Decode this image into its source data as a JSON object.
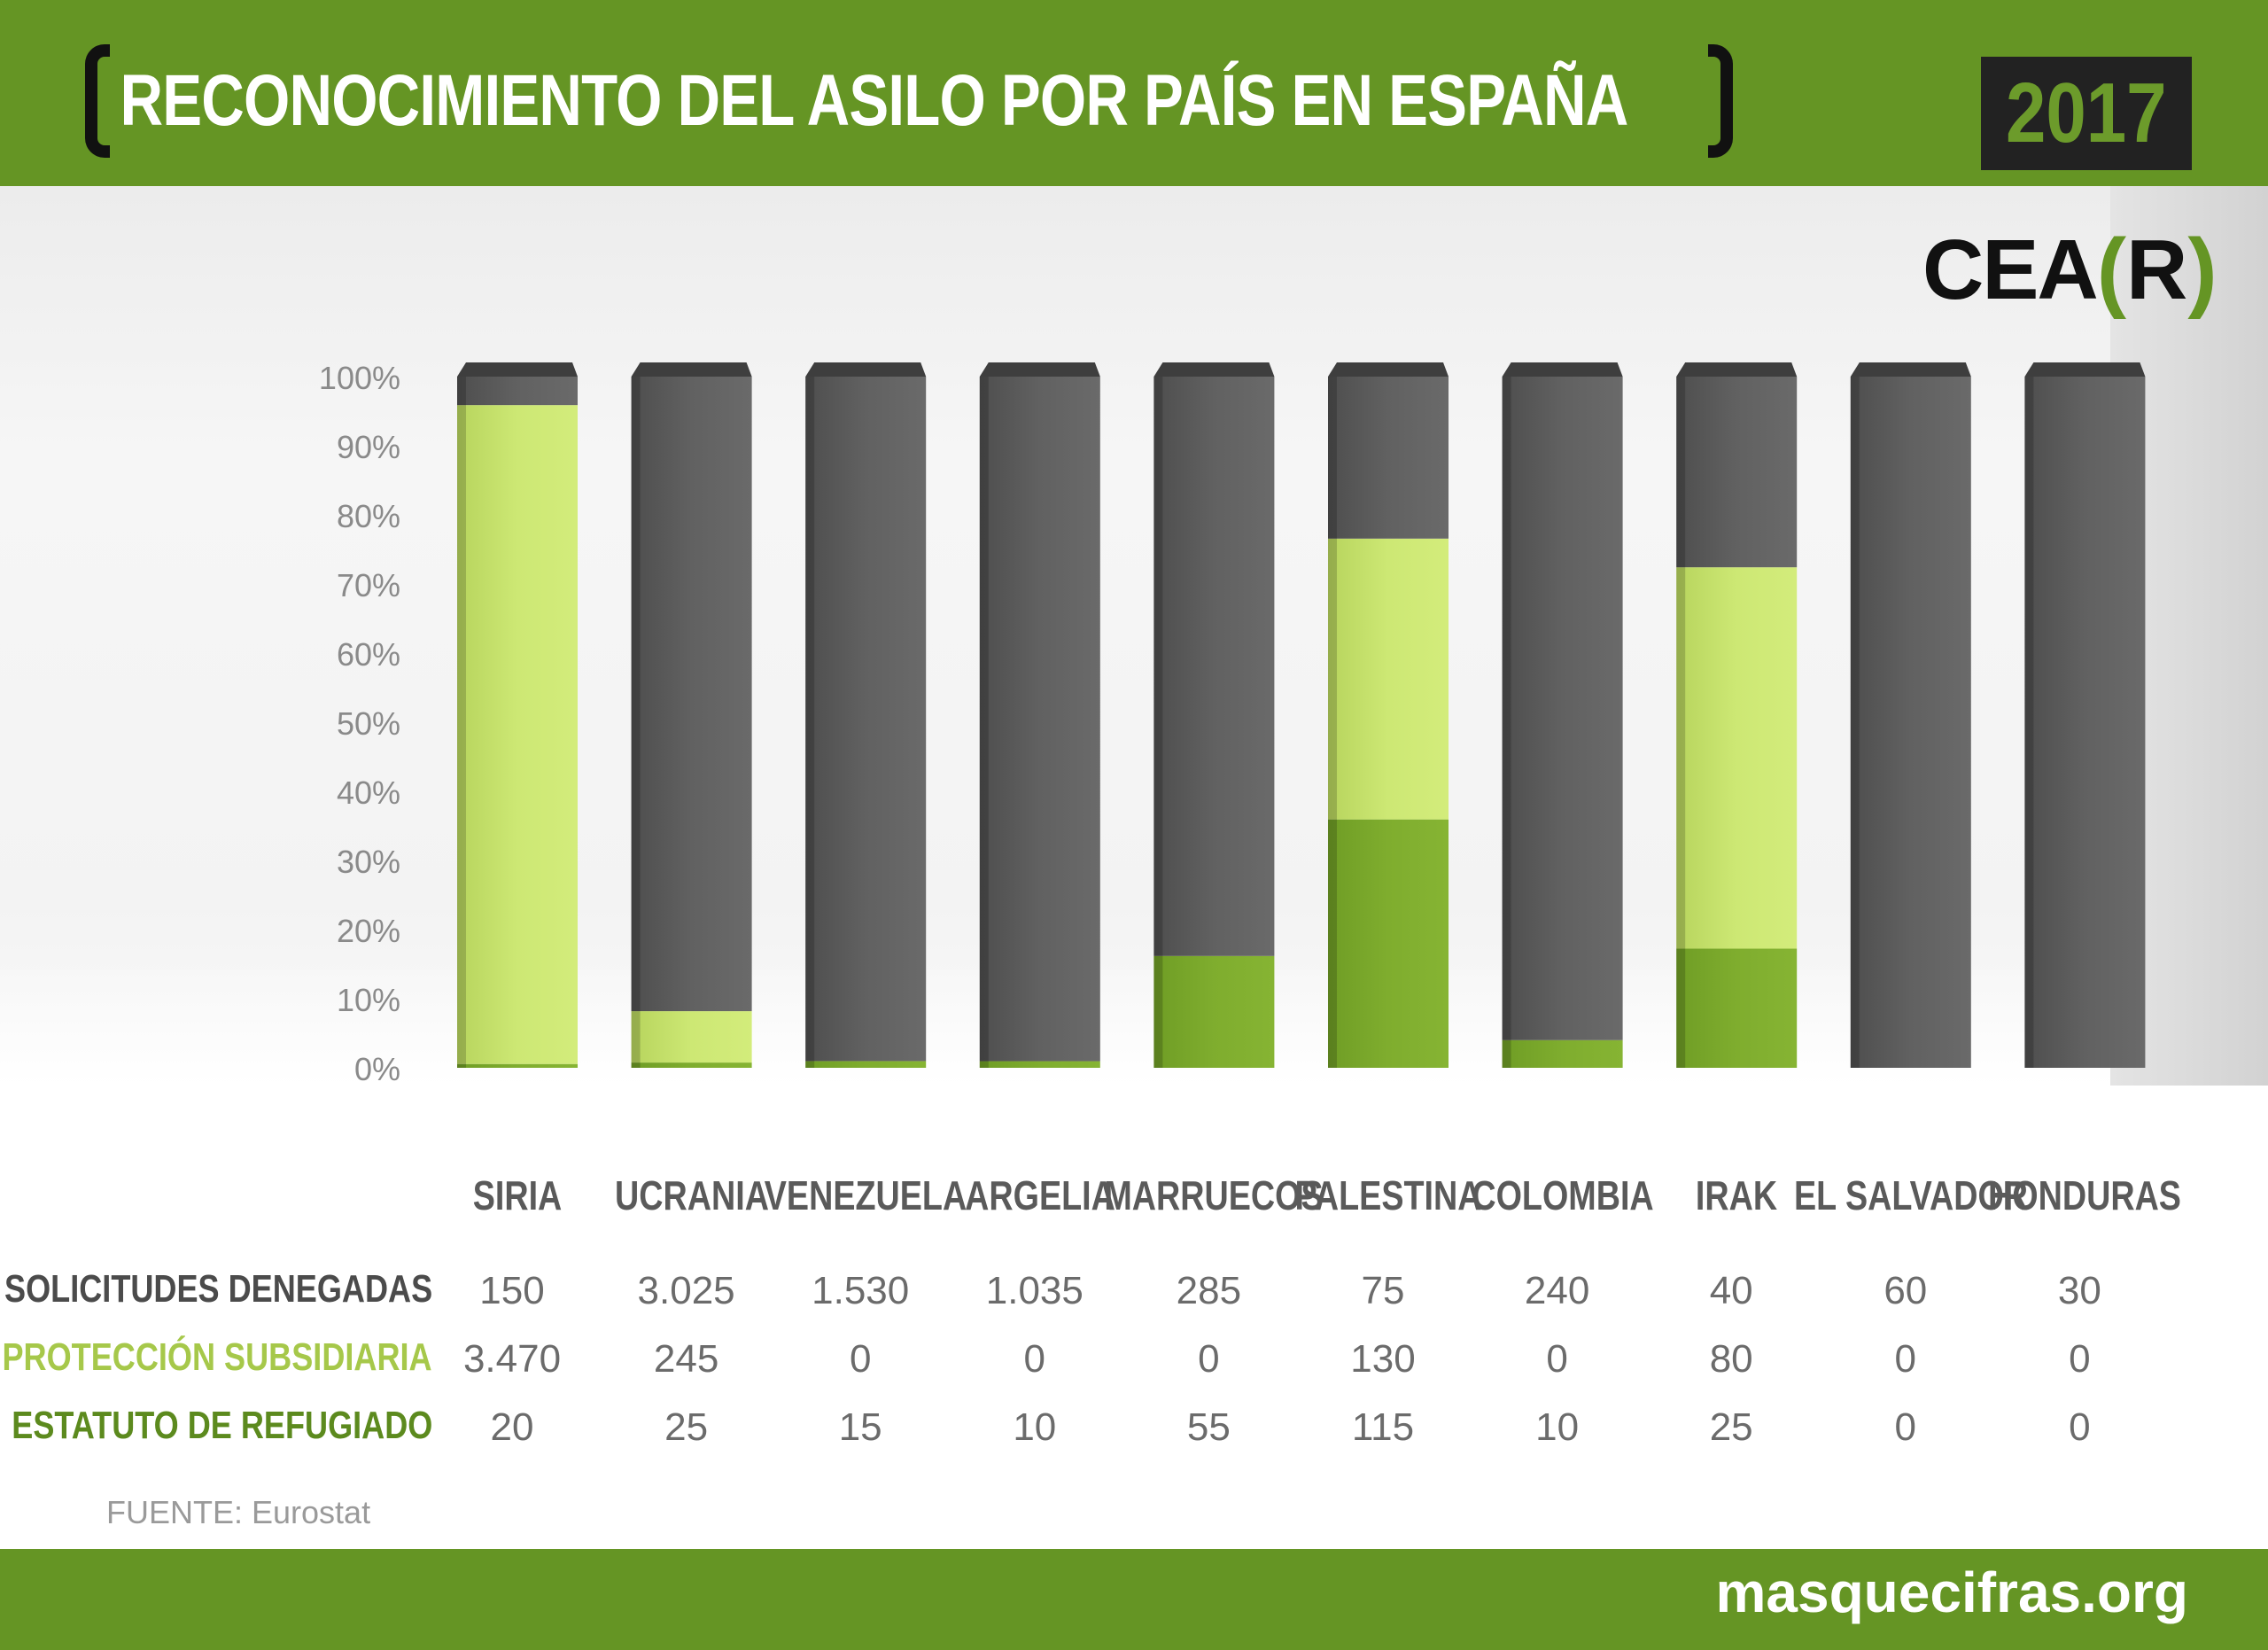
{
  "header": {
    "title": "RECONOCIMIENTO DEL ASILO POR PAÍS EN ESPAÑA",
    "year": "2017"
  },
  "logo": {
    "left": "CEA",
    "bracket_open": "(",
    "letter": "R",
    "bracket_close": ")"
  },
  "colors": {
    "header_green": "#659524",
    "denegadas": "#5a5a5a",
    "subsidiaria": "#c6e06f",
    "refugiado": "#7aa82c",
    "label_subsidiaria": "#a6c84a",
    "label_refugiado": "#5c8a1e"
  },
  "row_labels": {
    "denegadas": "SOLICITUDES DENEGADAS",
    "subsidiaria": "PROTECCIÓN SUBSIDIARIA",
    "refugiado": "ESTATUTO DE REFUGIADO"
  },
  "table_text": {
    "denegadas": [
      "150",
      "3.025",
      "1.530",
      "1.035",
      "285",
      "75",
      "240",
      "40",
      "60",
      "30"
    ],
    "subsidiaria": [
      "3.470",
      "245",
      "0",
      "0",
      "0",
      "130",
      "0",
      "80",
      "0",
      "0"
    ],
    "refugiado": [
      "20",
      "25",
      "15",
      "10",
      "55",
      "115",
      "10",
      "25",
      "0",
      "0"
    ]
  },
  "source": "FUENTE: Eurostat",
  "footer": {
    "site": "masquecifras.org"
  },
  "chart_data": {
    "type": "bar",
    "stacked": "percent",
    "categories": [
      "SIRIA",
      "UCRANIA",
      "VENEZUELA",
      "ARGELIA",
      "MARRUECOS",
      "PALESTINA",
      "COLOMBIA",
      "IRAK",
      "EL SALVADOR",
      "HONDURAS"
    ],
    "series": [
      {
        "name": "ESTATUTO DE REFUGIADO",
        "values": [
          20,
          25,
          15,
          10,
          55,
          115,
          10,
          25,
          0,
          0
        ]
      },
      {
        "name": "PROTECCIÓN SUBSIDIARIA",
        "values": [
          3470,
          245,
          0,
          0,
          0,
          130,
          0,
          80,
          0,
          0
        ]
      },
      {
        "name": "SOLICITUDES DENEGADAS",
        "values": [
          150,
          3025,
          1530,
          1035,
          285,
          75,
          240,
          40,
          60,
          30
        ]
      }
    ],
    "yticks": [
      "0%",
      "10%",
      "20%",
      "30%",
      "40%",
      "50%",
      "60%",
      "70%",
      "80%",
      "90%",
      "100%"
    ],
    "ylim": [
      0,
      100
    ],
    "grid": false
  }
}
